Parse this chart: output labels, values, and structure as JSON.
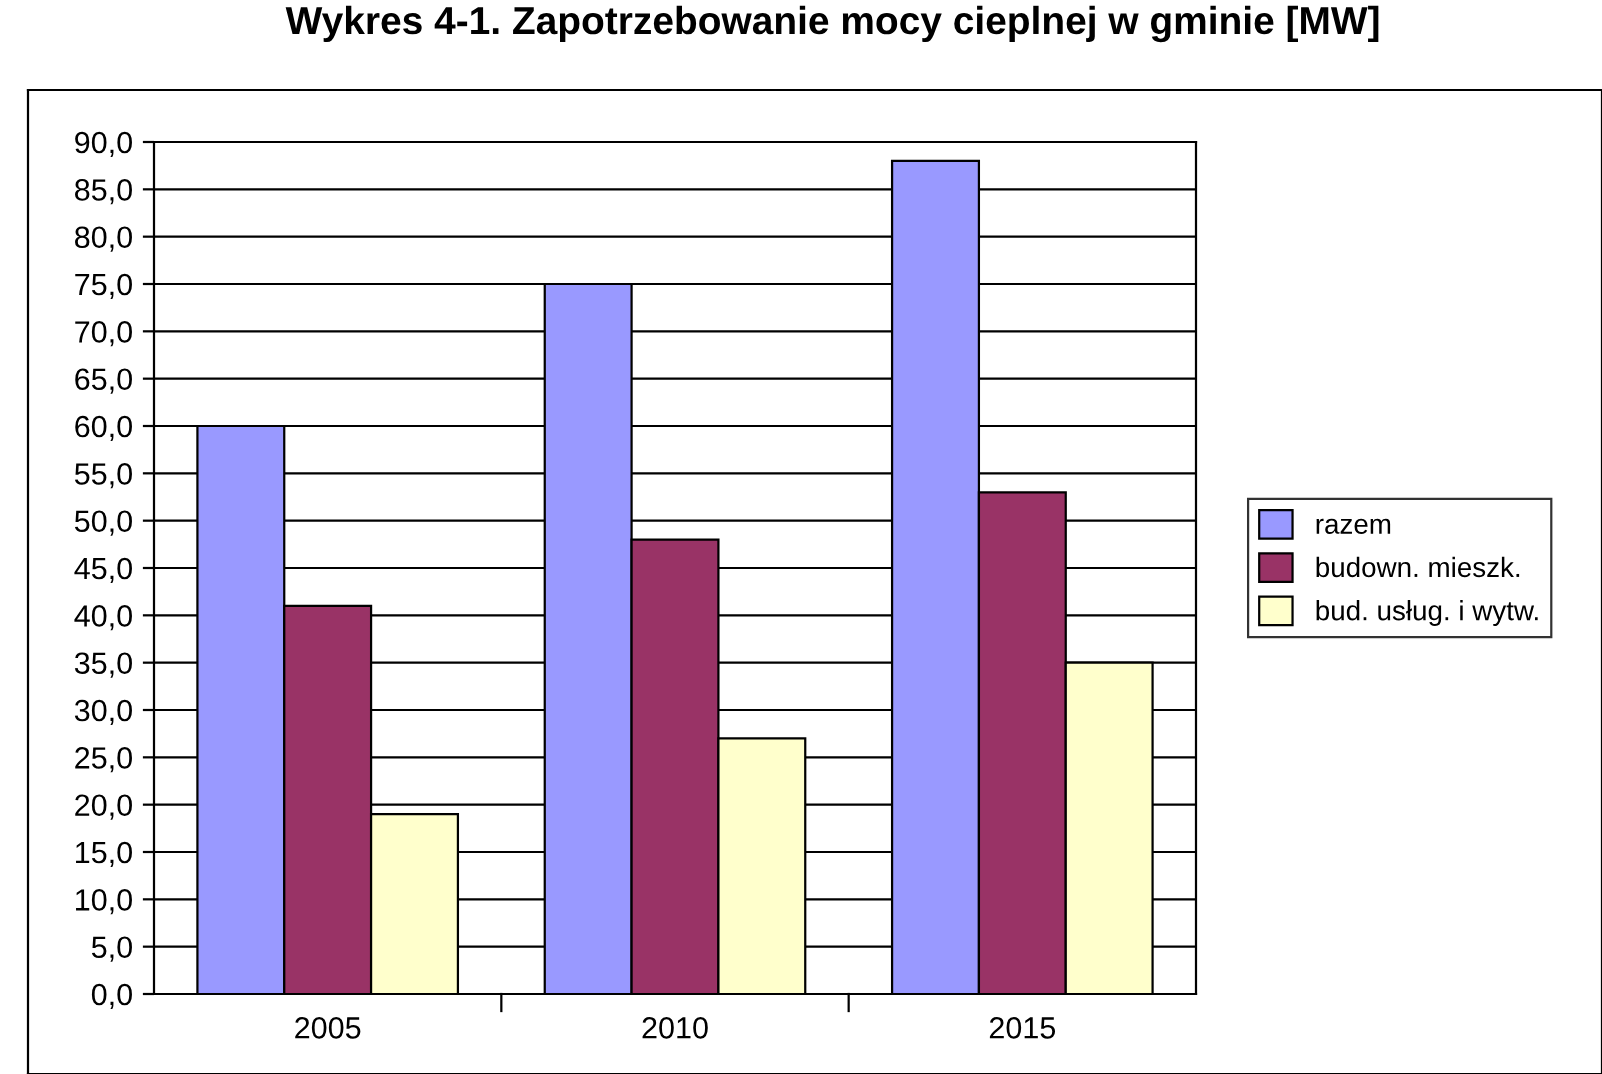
{
  "chart_data": {
    "type": "bar",
    "title": "Wykres 4-1. Zapotrzebowanie mocy cieplnej w gminie [MW]",
    "categories": [
      "2005",
      "2010",
      "2015"
    ],
    "series": [
      {
        "name": "razem",
        "color": "#9999ff",
        "values": [
          60,
          75,
          88
        ]
      },
      {
        "name": "budown. mieszk.",
        "color": "#993366",
        "values": [
          41,
          48,
          53
        ]
      },
      {
        "name": "bud. usług. i wytw.",
        "color": "#ffffcc",
        "values": [
          19,
          27,
          35
        ]
      }
    ],
    "ylim": [
      0,
      90
    ],
    "yticks": [
      {
        "value": 0,
        "label": "0,0"
      },
      {
        "value": 5,
        "label": "5,0"
      },
      {
        "value": 10,
        "label": "10,0"
      },
      {
        "value": 15,
        "label": "15,0"
      },
      {
        "value": 20,
        "label": "20,0"
      },
      {
        "value": 25,
        "label": "25,0"
      },
      {
        "value": 30,
        "label": "30,0"
      },
      {
        "value": 35,
        "label": "35,0"
      },
      {
        "value": 40,
        "label": "40,0"
      },
      {
        "value": 45,
        "label": "45,0"
      },
      {
        "value": 50,
        "label": "50,0"
      },
      {
        "value": 55,
        "label": "55,0"
      },
      {
        "value": 60,
        "label": "60,0"
      },
      {
        "value": 65,
        "label": "65,0"
      },
      {
        "value": 70,
        "label": "70,0"
      },
      {
        "value": 75,
        "label": "75,0"
      },
      {
        "value": 80,
        "label": "80,0"
      },
      {
        "value": 85,
        "label": "85,0"
      },
      {
        "value": 90,
        "label": "90,0"
      }
    ],
    "grid": "y",
    "legend": "right"
  }
}
